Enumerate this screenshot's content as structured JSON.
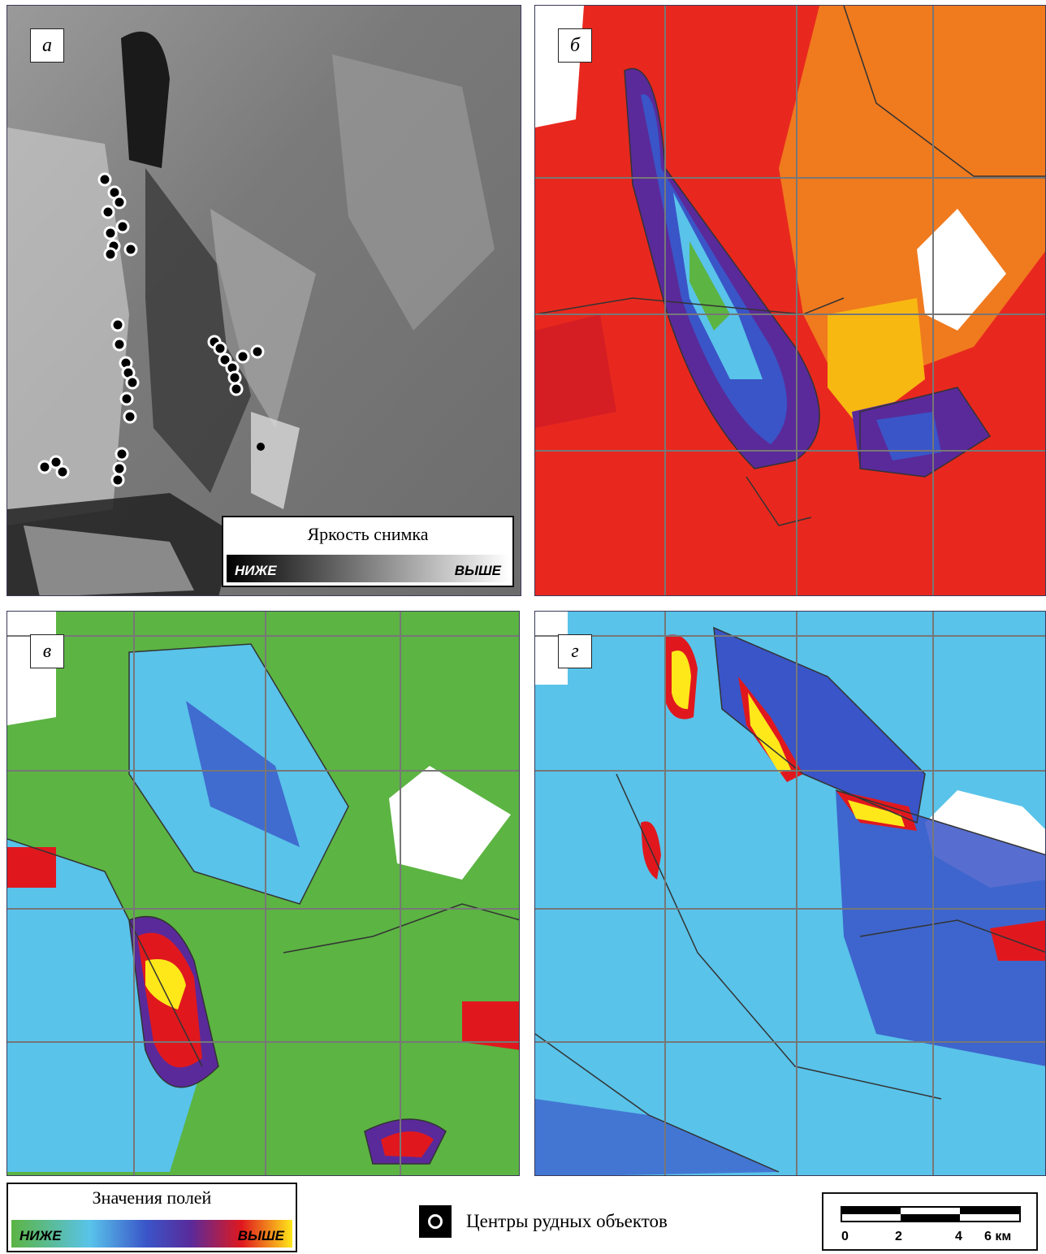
{
  "panels": {
    "a": {
      "label": "а",
      "legend": {
        "title": "Яркость снимка",
        "low": "НИЖЕ",
        "high": "ВЫШЕ"
      }
    },
    "b": {
      "label": "б"
    },
    "v": {
      "label": "в"
    },
    "g": {
      "label": "г"
    }
  },
  "field_legend": {
    "title": "Значения полей",
    "low": "НИЖЕ",
    "high": "ВЫШЕ",
    "colors": [
      "#5cb443",
      "#59c3ea",
      "#3a55c8",
      "#5a2a9a",
      "#e0181e",
      "#ffe81a"
    ]
  },
  "ore_legend": {
    "label": "Центры рудных объектов",
    "icon": "ore-center-icon"
  },
  "scale_bar": {
    "ticks": [
      "0",
      "2",
      "4",
      "6 км"
    ]
  }
}
